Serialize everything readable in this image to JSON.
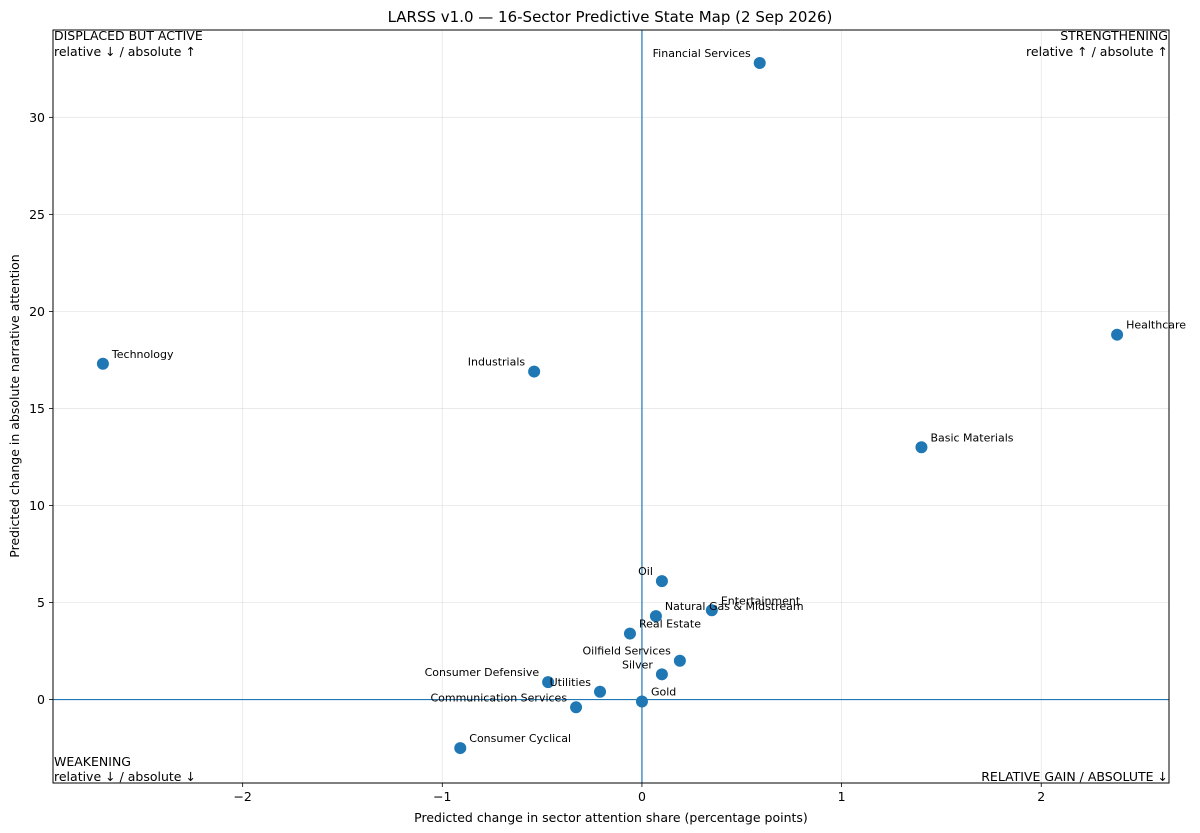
{
  "chart_data": {
    "type": "scatter",
    "title": "LARSS v1.0 — 16-Sector Predictive State Map (2 Sep 2026)",
    "xlabel": "Predicted change in sector attention share (percentage points)",
    "ylabel": "Predicted change in absolute narrative attention",
    "xlim": [
      -2.95,
      2.64
    ],
    "ylim": [
      -4.3,
      34.5
    ],
    "xticks": [
      -2,
      -1,
      0,
      1,
      2
    ],
    "xtick_labels": [
      "−2",
      "−1",
      "0",
      "1",
      "2"
    ],
    "yticks": [
      0,
      5,
      10,
      15,
      20,
      25,
      30
    ],
    "ytick_labels": [
      "0",
      "5",
      "10",
      "15",
      "20",
      "25",
      "30"
    ],
    "grid": true,
    "reference_lines": {
      "x": 0,
      "y": 0,
      "color": "#1f77b4"
    },
    "point_color": "#1f77b4",
    "points": [
      {
        "label": "Financial Services",
        "x": 0.59,
        "y": 32.8,
        "anchor": "end",
        "dx": -9,
        "dy": -6
      },
      {
        "label": "Healthcare",
        "x": 2.38,
        "y": 18.8,
        "anchor": "start",
        "dx": 9,
        "dy": -6
      },
      {
        "label": "Technology",
        "x": -2.7,
        "y": 17.3,
        "anchor": "start",
        "dx": 9,
        "dy": -6
      },
      {
        "label": "Industrials",
        "x": -0.54,
        "y": 16.9,
        "anchor": "end",
        "dx": -9,
        "dy": -6
      },
      {
        "label": "Basic Materials",
        "x": 1.4,
        "y": 13.0,
        "anchor": "start",
        "dx": 9,
        "dy": -6
      },
      {
        "label": "Oil",
        "x": 0.1,
        "y": 6.1,
        "anchor": "end",
        "dx": -9,
        "dy": -6
      },
      {
        "label": "Entertainment",
        "x": 0.35,
        "y": 4.6,
        "anchor": "start",
        "dx": 9,
        "dy": -6
      },
      {
        "label": "Natural Gas & Midstream",
        "x": 0.07,
        "y": 4.3,
        "anchor": "start",
        "dx": 9,
        "dy": -6
      },
      {
        "label": "Real Estate",
        "x": -0.06,
        "y": 3.4,
        "anchor": "start",
        "dx": 9,
        "dy": -6
      },
      {
        "label": "Oilfield Services",
        "x": 0.19,
        "y": 2.0,
        "anchor": "end",
        "dx": -9,
        "dy": -6
      },
      {
        "label": "Silver",
        "x": 0.1,
        "y": 1.3,
        "anchor": "end",
        "dx": -9,
        "dy": -6
      },
      {
        "label": "Consumer Defensive",
        "x": -0.47,
        "y": 0.9,
        "anchor": "end",
        "dx": -9,
        "dy": -6
      },
      {
        "label": "Utilities",
        "x": -0.21,
        "y": 0.4,
        "anchor": "end",
        "dx": -9,
        "dy": -6
      },
      {
        "label": "Communication Services",
        "x": -0.33,
        "y": -0.4,
        "anchor": "end",
        "dx": -9,
        "dy": -6
      },
      {
        "label": "Gold",
        "x": 0.0,
        "y": -0.1,
        "anchor": "start",
        "dx": 9,
        "dy": -6
      },
      {
        "label": "Consumer Cyclical",
        "x": -0.91,
        "y": -2.5,
        "anchor": "start",
        "dx": 9,
        "dy": -6
      }
    ],
    "quadrant_labels": {
      "top_left": {
        "line1": "DISPLACED BUT ACTIVE",
        "line2": "relative ↓ / absolute ↑"
      },
      "top_right": {
        "line1": "STRENGTHENING",
        "line2": "relative ↑ / absolute ↑"
      },
      "bottom_left": {
        "line1": "WEAKENING",
        "line2": "relative ↓ / absolute ↓"
      },
      "bottom_right": {
        "line1": "RELATIVE GAIN / ABSOLUTE ↓"
      }
    }
  }
}
